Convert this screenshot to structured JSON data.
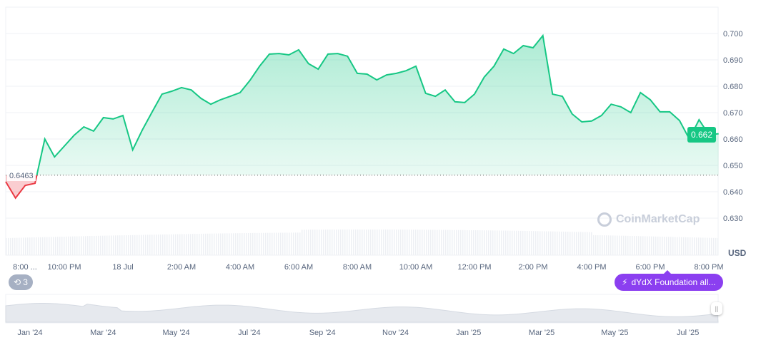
{
  "chart_data": {
    "type": "line",
    "currency_label": "USD",
    "open_price": 0.6463,
    "current_price_label": "0.662",
    "open_price_label": "0.6463",
    "ylim": [
      0.625,
      0.705
    ],
    "y_ticks": [
      "0.630",
      "0.640",
      "0.650",
      "0.660",
      "0.670",
      "0.680",
      "0.690",
      "0.700"
    ],
    "y_tick_values": [
      0.63,
      0.64,
      0.65,
      0.66,
      0.67,
      0.68,
      0.69,
      0.7
    ],
    "x_tick_labels": [
      "8:00 ...",
      "10:00 PM",
      "18 Jul",
      "2:00 AM",
      "4:00 AM",
      "6:00 AM",
      "8:00 AM",
      "10:00 AM",
      "12:00 PM",
      "2:00 PM",
      "4:00 PM",
      "6:00 PM",
      "8:00 PM"
    ],
    "x_tick_times": [
      "20:00",
      "22:00",
      "00:00",
      "02:00",
      "04:00",
      "06:00",
      "08:00",
      "10:00",
      "12:00",
      "14:00",
      "16:00",
      "18:00",
      "20:00"
    ],
    "grid": true,
    "colors": {
      "up": "#16c784",
      "down": "#ea3943",
      "news": "#8b3ff0"
    },
    "x": [
      "17 Jul 20:00",
      "17 Jul 20:20",
      "17 Jul 20:40",
      "17 Jul 21:00",
      "17 Jul 21:20",
      "17 Jul 21:40",
      "17 Jul 22:00",
      "17 Jul 22:20",
      "17 Jul 22:40",
      "17 Jul 23:00",
      "17 Jul 23:20",
      "17 Jul 23:40",
      "18 Jul 00:00",
      "18 Jul 00:20",
      "18 Jul 00:40",
      "18 Jul 01:00",
      "18 Jul 01:20",
      "18 Jul 01:40",
      "18 Jul 02:00",
      "18 Jul 02:20",
      "18 Jul 02:40",
      "18 Jul 03:00",
      "18 Jul 03:20",
      "18 Jul 03:40",
      "18 Jul 04:00",
      "18 Jul 04:20",
      "18 Jul 04:40",
      "18 Jul 05:00",
      "18 Jul 05:20",
      "18 Jul 05:40",
      "18 Jul 06:00",
      "18 Jul 06:20",
      "18 Jul 06:40",
      "18 Jul 07:00",
      "18 Jul 07:20",
      "18 Jul 07:40",
      "18 Jul 08:00",
      "18 Jul 08:20",
      "18 Jul 08:40",
      "18 Jul 09:00",
      "18 Jul 09:20",
      "18 Jul 09:40",
      "18 Jul 10:00",
      "18 Jul 10:20",
      "18 Jul 10:40",
      "18 Jul 11:00",
      "18 Jul 11:20",
      "18 Jul 11:40",
      "18 Jul 12:00",
      "18 Jul 12:20",
      "18 Jul 12:40",
      "18 Jul 13:00",
      "18 Jul 13:20",
      "18 Jul 13:40",
      "18 Jul 14:00",
      "18 Jul 14:20",
      "18 Jul 14:40",
      "18 Jul 15:00",
      "18 Jul 15:20",
      "18 Jul 15:40",
      "18 Jul 16:00",
      "18 Jul 16:20",
      "18 Jul 16:40",
      "18 Jul 17:00",
      "18 Jul 17:20",
      "18 Jul 17:40",
      "18 Jul 18:00",
      "18 Jul 18:20",
      "18 Jul 18:40",
      "18 Jul 19:00",
      "18 Jul 19:20",
      "18 Jul 19:40",
      "18 Jul 20:00",
      "18 Jul 20:20"
    ],
    "values": [
      0.6438,
      0.6376,
      0.6424,
      0.6432,
      0.66,
      0.6532,
      0.6573,
      0.6614,
      0.6646,
      0.663,
      0.6681,
      0.6676,
      0.6689,
      0.6559,
      0.6635,
      0.6703,
      0.677,
      0.6781,
      0.6795,
      0.6786,
      0.6754,
      0.6732,
      0.6749,
      0.6762,
      0.6776,
      0.6822,
      0.6876,
      0.6922,
      0.6924,
      0.6919,
      0.6938,
      0.6886,
      0.6865,
      0.6922,
      0.6924,
      0.6914,
      0.6849,
      0.6846,
      0.6824,
      0.6843,
      0.6849,
      0.6859,
      0.6876,
      0.6773,
      0.6762,
      0.6786,
      0.6741,
      0.6738,
      0.677,
      0.6835,
      0.6876,
      0.6941,
      0.6924,
      0.6954,
      0.6946,
      0.6992,
      0.677,
      0.6762,
      0.6695,
      0.6665,
      0.6668,
      0.6689,
      0.6732,
      0.6722,
      0.67,
      0.6776,
      0.6749,
      0.6703,
      0.6703,
      0.667,
      0.66,
      0.6673,
      0.6616,
      0.662
    ]
  },
  "watermark": "CoinMarketCap",
  "events_badge": {
    "icon": "history-icon",
    "count": "3"
  },
  "news_badge": {
    "icon": "lightning-icon",
    "label": "dYdX Foundation all..."
  },
  "navigator": {
    "labels": [
      "Jan '24",
      "Mar '24",
      "May '24",
      "Jul '24",
      "Sep '24",
      "Nov '24",
      "Jan '25",
      "Mar '25",
      "May '25",
      "Jul '25"
    ],
    "handle_icon": "drag-handle-icon"
  }
}
